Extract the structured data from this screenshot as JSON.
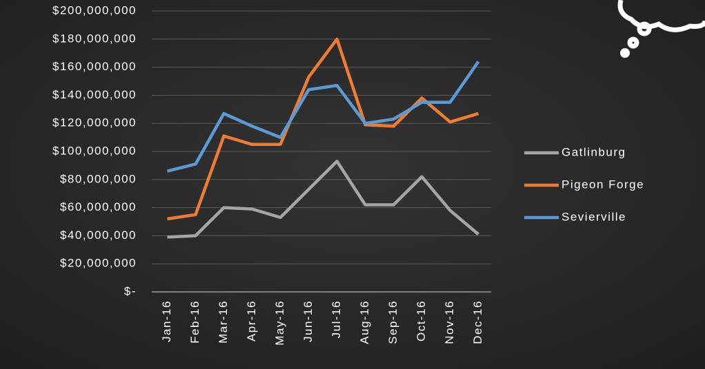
{
  "chart_data": {
    "type": "line",
    "categories": [
      "Jan-16",
      "Feb-16",
      "Mar-16",
      "Apr-16",
      "May-16",
      "Jun-16",
      "Jul-16",
      "Aug-16",
      "Sep-16",
      "Oct-16",
      "Nov-16",
      "Dec-16"
    ],
    "series": [
      {
        "name": "Gatlinburg",
        "color": "#a5a5a5",
        "values": [
          39000000,
          40000000,
          60000000,
          59000000,
          53000000,
          73000000,
          93000000,
          62000000,
          62000000,
          82000000,
          58000000,
          41000000
        ]
      },
      {
        "name": "Pigeon Forge",
        "color": "#ed7d31",
        "values": [
          52000000,
          55000000,
          111000000,
          105000000,
          105000000,
          153000000,
          180000000,
          119000000,
          118000000,
          138000000,
          121000000,
          127000000
        ]
      },
      {
        "name": "Sevierville",
        "color": "#5b9bd5",
        "values": [
          86000000,
          91000000,
          127000000,
          118000000,
          110000000,
          144000000,
          147000000,
          120000000,
          123000000,
          135000000,
          135000000,
          164000000
        ]
      }
    ],
    "ylim": [
      0,
      200000000
    ],
    "yticks": [
      {
        "value": 0,
        "label": "$-"
      },
      {
        "value": 20000000,
        "label": "$20,000,000"
      },
      {
        "value": 40000000,
        "label": "$40,000,000"
      },
      {
        "value": 60000000,
        "label": "$60,000,000"
      },
      {
        "value": 80000000,
        "label": "$80,000,000"
      },
      {
        "value": 100000000,
        "label": "$100,000,000"
      },
      {
        "value": 120000000,
        "label": "$120,000,000"
      },
      {
        "value": 140000000,
        "label": "$140,000,000"
      },
      {
        "value": 160000000,
        "label": "$160,000,000"
      },
      {
        "value": 180000000,
        "label": "$180,000,000"
      },
      {
        "value": 200000000,
        "label": "$200,000,000"
      }
    ],
    "grid": true,
    "legend": "right"
  }
}
